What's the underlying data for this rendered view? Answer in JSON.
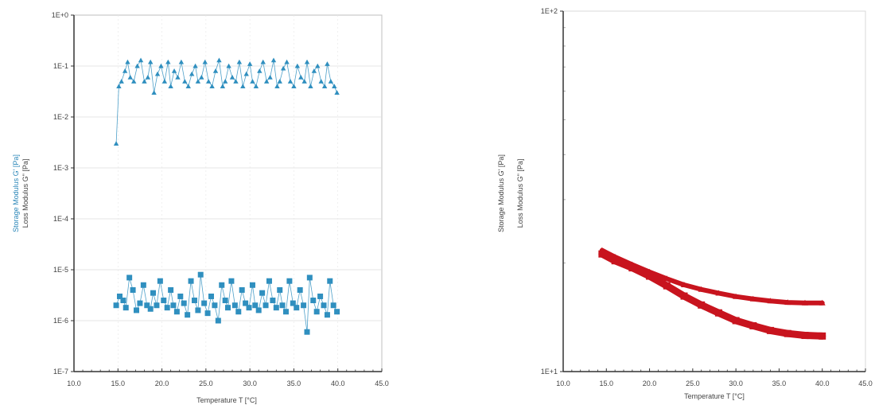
{
  "chart_data": [
    {
      "type": "scatter",
      "y_scale": "log",
      "xlim": [
        10,
        45
      ],
      "ylim": [
        1e-07,
        1
      ],
      "grid": true,
      "xlabel": "Temperature T [°C]",
      "ylabels": [
        "Storage Modulus G' [Pa]",
        "Loss Modulus G\" [Pa]"
      ],
      "x_ticks": [
        "10.0",
        "15.0",
        "20.0",
        "25.0",
        "30.0",
        "35.0",
        "40.0",
        "45.0"
      ],
      "y_ticks": [
        "1E-7",
        "1E-6",
        "1E-5",
        "1E-4",
        "1E-3",
        "1E-2",
        "1E-1",
        "1E+0"
      ],
      "color": "#2f8fbf",
      "series": [
        {
          "marker": "triangle",
          "x": [
            14.8,
            15.1,
            15.4,
            15.8,
            16.1,
            16.4,
            16.8,
            17.2,
            17.6,
            18.0,
            18.4,
            18.7,
            19.1,
            19.5,
            19.9,
            20.3,
            20.7,
            21.0,
            21.4,
            21.8,
            22.2,
            22.6,
            23.0,
            23.4,
            23.8,
            24.1,
            24.5,
            24.9,
            25.3,
            25.7,
            26.1,
            26.5,
            26.9,
            27.2,
            27.6,
            28.0,
            28.4,
            28.8,
            29.2,
            29.6,
            30.0,
            30.3,
            30.7,
            31.1,
            31.5,
            31.9,
            32.3,
            32.7,
            33.1,
            33.4,
            33.8,
            34.2,
            34.6,
            35.0,
            35.4,
            35.8,
            36.2,
            36.5,
            36.9,
            37.3,
            37.7,
            38.1,
            38.5,
            38.8,
            39.2,
            39.6,
            39.9
          ],
          "y": [
            0.003,
            0.04,
            0.05,
            0.08,
            0.12,
            0.06,
            0.05,
            0.1,
            0.13,
            0.05,
            0.06,
            0.12,
            0.03,
            0.07,
            0.1,
            0.05,
            0.12,
            0.04,
            0.08,
            0.06,
            0.12,
            0.05,
            0.04,
            0.07,
            0.1,
            0.05,
            0.06,
            0.12,
            0.05,
            0.04,
            0.08,
            0.13,
            0.04,
            0.05,
            0.1,
            0.06,
            0.05,
            0.12,
            0.04,
            0.07,
            0.11,
            0.05,
            0.04,
            0.08,
            0.12,
            0.05,
            0.06,
            0.13,
            0.04,
            0.05,
            0.09,
            0.12,
            0.05,
            0.04,
            0.1,
            0.06,
            0.05,
            0.12,
            0.04,
            0.08,
            0.1,
            0.05,
            0.04,
            0.11,
            0.05,
            0.04,
            0.03
          ]
        },
        {
          "marker": "square",
          "x": [
            14.8,
            15.2,
            15.6,
            15.9,
            16.3,
            16.7,
            17.1,
            17.5,
            17.9,
            18.3,
            18.7,
            19.0,
            19.4,
            19.8,
            20.2,
            20.6,
            21.0,
            21.3,
            21.7,
            22.1,
            22.5,
            22.9,
            23.3,
            23.7,
            24.1,
            24.4,
            24.8,
            25.2,
            25.6,
            26.0,
            26.4,
            26.8,
            27.2,
            27.5,
            27.9,
            28.3,
            28.7,
            29.1,
            29.5,
            29.9,
            30.3,
            30.6,
            31.0,
            31.4,
            31.8,
            32.2,
            32.6,
            33.0,
            33.4,
            33.7,
            34.1,
            34.5,
            34.9,
            35.3,
            35.7,
            36.1,
            36.5,
            36.8,
            37.2,
            37.6,
            38.0,
            38.4,
            38.8,
            39.1,
            39.5,
            39.9
          ],
          "y": [
            2e-06,
            3e-06,
            2.5e-06,
            1.8e-06,
            7e-06,
            4e-06,
            1.6e-06,
            2.2e-06,
            5e-06,
            2e-06,
            1.7e-06,
            3.5e-06,
            2e-06,
            6e-06,
            2.5e-06,
            1.8e-06,
            4e-06,
            2e-06,
            1.5e-06,
            3e-06,
            2.2e-06,
            1.3e-06,
            6e-06,
            2.5e-06,
            1.6e-06,
            8e-06,
            2.2e-06,
            1.4e-06,
            3e-06,
            2e-06,
            1e-06,
            5e-06,
            2.5e-06,
            1.8e-06,
            6e-06,
            2e-06,
            1.5e-06,
            4e-06,
            2.2e-06,
            1.8e-06,
            5e-06,
            2e-06,
            1.6e-06,
            3.5e-06,
            2e-06,
            6e-06,
            2.5e-06,
            1.8e-06,
            4e-06,
            2e-06,
            1.5e-06,
            6e-06,
            2.2e-06,
            1.8e-06,
            4e-06,
            2e-06,
            6e-07,
            7e-06,
            2.5e-06,
            1.5e-06,
            3e-06,
            2e-06,
            1.3e-06,
            6e-06,
            2e-06,
            1.5e-06
          ]
        }
      ]
    },
    {
      "type": "scatter",
      "y_scale": "log",
      "xlim": [
        10,
        45
      ],
      "ylim": [
        10,
        100
      ],
      "grid": false,
      "xlabel": "Temperature T [°C]",
      "ylabels": [
        "Storage Modulus G' [Pa]",
        "Loss Modulus G\" [Pa]"
      ],
      "x_ticks": [
        "10.0",
        "15.0",
        "20.0",
        "25.0",
        "30.0",
        "35.0",
        "40.0",
        "45.0"
      ],
      "y_ticks": [
        "1E+1",
        "1E+2"
      ],
      "color": "#c8141e",
      "series": [
        {
          "marker": "triangle",
          "x": [
            14.5,
            16,
            18,
            20,
            22,
            24,
            26,
            28,
            30,
            32,
            34,
            36,
            38,
            40
          ],
          "y": [
            21.7,
            20.8,
            19.8,
            18.9,
            18.1,
            17.4,
            16.9,
            16.5,
            16.15,
            15.9,
            15.7,
            15.55,
            15.5,
            15.5
          ]
        },
        {
          "marker": "square",
          "x": [
            14.5,
            16,
            18,
            20,
            22,
            24,
            26,
            28,
            30,
            32,
            34,
            36,
            38,
            40
          ],
          "y": [
            21.2,
            20.3,
            19.4,
            18.4,
            17.3,
            16.2,
            15.3,
            14.55,
            13.85,
            13.4,
            13.0,
            12.75,
            12.6,
            12.55
          ]
        }
      ]
    }
  ]
}
